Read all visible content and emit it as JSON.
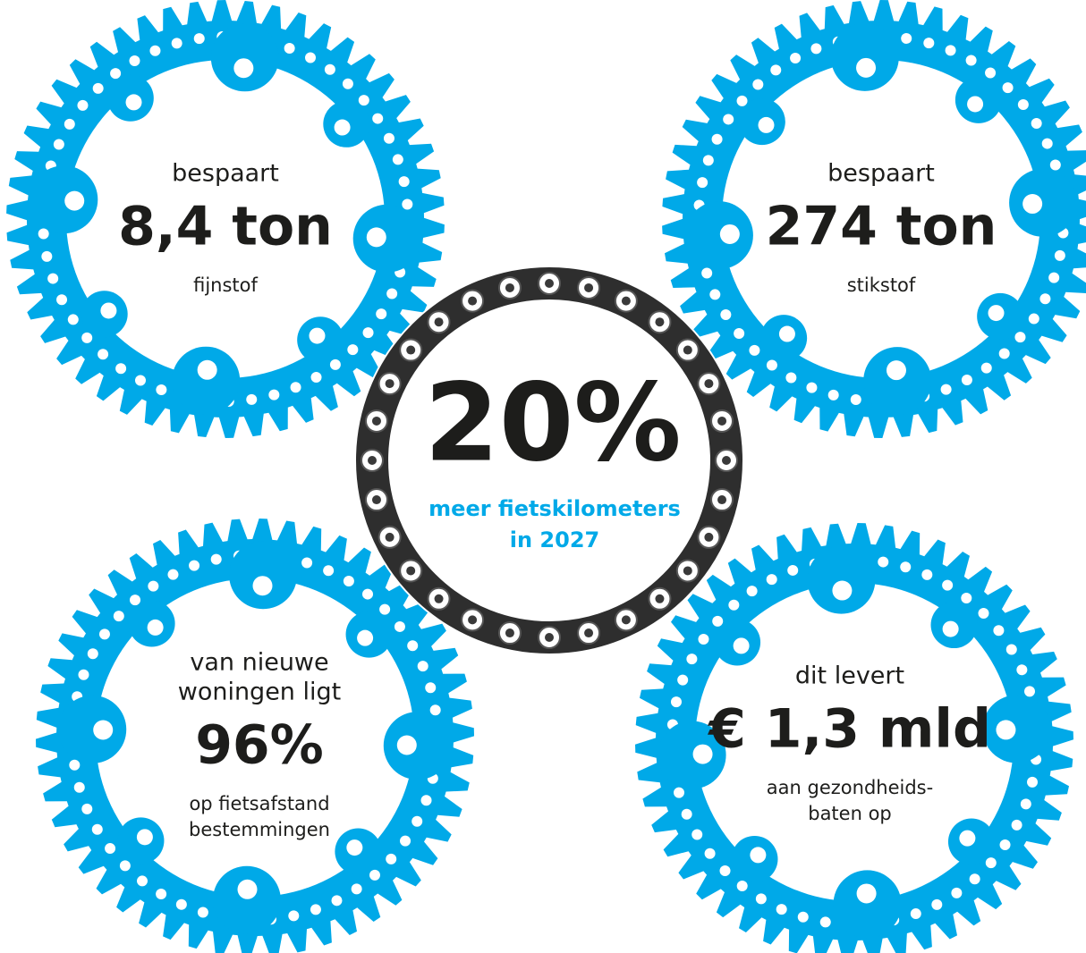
{
  "gears": [
    {
      "lines_above": [
        "bespaart"
      ],
      "figure": "8,4 ton",
      "lines_below": [
        "fijnstof"
      ]
    },
    {
      "lines_above": [
        "bespaart"
      ],
      "figure": "274 ton",
      "lines_below": [
        "stikstof"
      ]
    },
    {
      "lines_above": [
        "van nieuwe",
        "woningen ligt"
      ],
      "figure": "96%",
      "lines_below": [
        "op fietsafstand",
        "bestemmingen"
      ]
    },
    {
      "lines_above": [
        "dit levert"
      ],
      "figure": "€ 1,3 mld",
      "lines_below": [
        "aan gezondheids-",
        "baten op"
      ]
    }
  ],
  "center": {
    "figure": "20%",
    "lines": [
      "meer fietskilometers",
      "in 2027"
    ]
  }
}
